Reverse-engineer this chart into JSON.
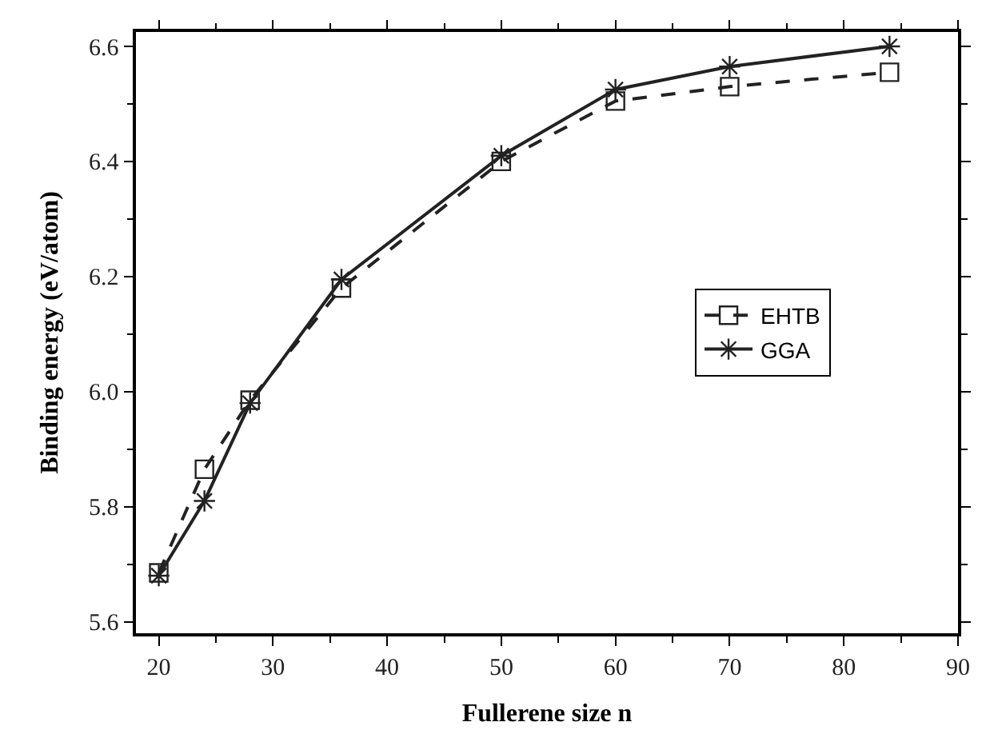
{
  "chart_data": {
    "type": "line",
    "xlabel": "Fullerene size n",
    "ylabel": "Binding energy (eV/atom)",
    "x": [
      20,
      24,
      28,
      36,
      50,
      60,
      70,
      84
    ],
    "series": [
      {
        "name": "EHTB",
        "color": "#222222",
        "marker": "square",
        "line_style": "dashed",
        "values": [
          5.685,
          5.865,
          5.985,
          6.18,
          6.4,
          6.505,
          6.53,
          6.555
        ]
      },
      {
        "name": "GGA",
        "color": "#222222",
        "marker": "cross",
        "line_style": "solid",
        "values": [
          5.68,
          5.81,
          5.98,
          6.195,
          6.41,
          6.525,
          6.565,
          6.6
        ]
      }
    ],
    "xlim": [
      18,
      90
    ],
    "xticks": [
      20,
      30,
      40,
      50,
      60,
      70,
      80,
      90
    ],
    "ylim": [
      5.58,
      6.625
    ],
    "yticks": [
      {
        "value": 5.6,
        "label": "5.6"
      },
      {
        "value": 5.8,
        "label": "5.8"
      },
      {
        "value": 6.0,
        "label": "6.0"
      },
      {
        "value": 6.2,
        "label": "6.2"
      },
      {
        "value": 6.4,
        "label": "6.4"
      },
      {
        "value": 6.6,
        "label": "6.6"
      }
    ],
    "legend": "right"
  }
}
